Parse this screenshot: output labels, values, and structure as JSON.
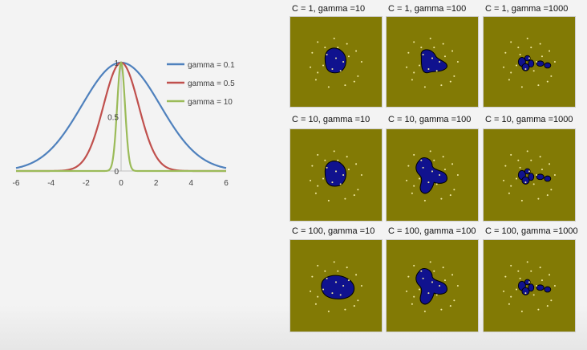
{
  "chart_data": [
    {
      "type": "line",
      "title": "",
      "xlabel": "",
      "ylabel": "",
      "xlim": [
        -6,
        6
      ],
      "ylim": [
        0,
        1
      ],
      "x_ticks": [
        "-6",
        "-4",
        "-2",
        "0",
        "2",
        "4",
        "6"
      ],
      "y_ticks": [
        "1",
        "0.5",
        "0"
      ],
      "legend_position": "right",
      "function": "exp(-gamma * x^2)",
      "series": [
        {
          "name": "gamma = 0.1",
          "gamma": 0.1,
          "color": "#4f81bd"
        },
        {
          "name": "gamma = 0.5",
          "gamma": 0.5,
          "color": "#c0504d"
        },
        {
          "name": "gamma = 10",
          "gamma": 10,
          "color": "#9bbb59"
        }
      ]
    },
    {
      "type": "grid-of-decision-boundaries",
      "panels": [
        {
          "title": "C = 1, gamma =10",
          "C": 1,
          "gamma": 10,
          "shape": "single-round-blob"
        },
        {
          "title": "C = 1, gamma =100",
          "C": 1,
          "gamma": 100,
          "shape": "lobed-blob"
        },
        {
          "title": "C = 1, gamma =1000",
          "C": 1,
          "gamma": 1000,
          "shape": "small-island-blobs"
        },
        {
          "title": "C = 10, gamma =10",
          "C": 10,
          "gamma": 10,
          "shape": "single-round-blob"
        },
        {
          "title": "C = 10, gamma =100",
          "C": 10,
          "gamma": 100,
          "shape": "three-lobed-blob"
        },
        {
          "title": "C = 10, gamma =1000",
          "C": 10,
          "gamma": 1000,
          "shape": "small-island-blobs"
        },
        {
          "title": "C = 100, gamma =10",
          "C": 100,
          "gamma": 10,
          "shape": "wide-round-blob"
        },
        {
          "title": "C = 100, gamma =100",
          "C": 100,
          "gamma": 100,
          "shape": "three-lobed-blob"
        },
        {
          "title": "C = 100, gamma =1000",
          "C": 100,
          "gamma": 1000,
          "shape": "small-island-blobs"
        }
      ],
      "colors": {
        "background": "#827a05",
        "region": "#10128e",
        "region_outline": "#000000",
        "points": "#f0e8a0"
      }
    }
  ]
}
